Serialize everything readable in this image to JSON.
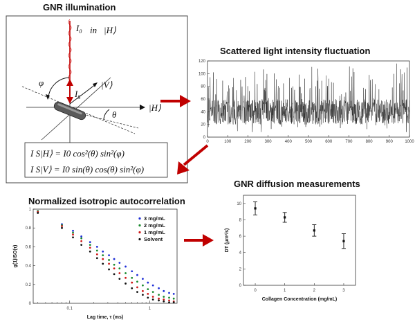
{
  "panels": {
    "illumination": {
      "title": "GNR illumination",
      "labels": {
        "i0": "I",
        "i0_sub": "0",
        "in": "in",
        "h_ket_top": "|H⟩",
        "h_ket_right": "|H⟩",
        "v_ket": "|V⟩",
        "is": "I",
        "is_sub": "S",
        "phi": "φ",
        "theta": "θ"
      },
      "equations": [
        "I S|H⟩ = I0 cos²(θ) sin²(φ)",
        "I S|V⟩ = I0 sin(θ) cos(θ) sin²(φ)"
      ]
    },
    "fluctuation": {
      "title": "Scattered light intensity fluctuation"
    },
    "autocorrelation": {
      "title": "Normalized isotropic autocorrelation"
    },
    "diffusion": {
      "title": "GNR diffusion measurements"
    }
  },
  "colors": {
    "arrow": "#c00000",
    "panel_border": "#444444",
    "rod": "#555555"
  },
  "chart_data": [
    {
      "type": "line",
      "xlim": [
        0,
        1000
      ],
      "ylim": [
        0,
        120
      ],
      "xticks": [
        0,
        100,
        200,
        300,
        400,
        500,
        600,
        700,
        800,
        900,
        1000
      ],
      "yticks": [
        0,
        20,
        40,
        60,
        80,
        100,
        120
      ],
      "xlabel": "",
      "ylabel": "",
      "noise": {
        "baseline": 40,
        "min": 8,
        "max": 118,
        "points": 1000
      },
      "grid": false
    },
    {
      "type": "scatter",
      "x_scale": "log",
      "xlabel": "Lag time, τ (ms)",
      "ylabel": "g(1)ISO(τ)",
      "xlim": [
        0.035,
        2.2
      ],
      "ylim": [
        0,
        1.0
      ],
      "xticks": [
        0.1,
        1
      ],
      "yticks": [
        0,
        0.2,
        0.4,
        0.6,
        0.8,
        1.0
      ],
      "legend_position": "top-right",
      "x": [
        0.04,
        0.08,
        0.11,
        0.14,
        0.18,
        0.22,
        0.26,
        0.31,
        0.36,
        0.42,
        0.5,
        0.6,
        0.7,
        0.82,
        0.95,
        1.1,
        1.3,
        1.5,
        1.75,
        2.0
      ],
      "series": [
        {
          "name": "3 mg/mL",
          "color": "#1f2fd6",
          "values": [
            0.98,
            0.84,
            0.77,
            0.71,
            0.65,
            0.6,
            0.55,
            0.51,
            0.47,
            0.43,
            0.39,
            0.34,
            0.3,
            0.26,
            0.22,
            0.19,
            0.16,
            0.13,
            0.11,
            0.1
          ]
        },
        {
          "name": "2 mg/mL",
          "color": "#1a8a2e",
          "values": [
            0.98,
            0.83,
            0.75,
            0.69,
            0.62,
            0.56,
            0.51,
            0.46,
            0.41,
            0.37,
            0.32,
            0.27,
            0.23,
            0.19,
            0.15,
            0.12,
            0.09,
            0.07,
            0.06,
            0.05
          ]
        },
        {
          "name": "1 mg/mL",
          "color": "#d01818",
          "values": [
            0.97,
            0.82,
            0.73,
            0.66,
            0.59,
            0.52,
            0.47,
            0.42,
            0.37,
            0.32,
            0.27,
            0.22,
            0.17,
            0.13,
            0.1,
            0.07,
            0.05,
            0.04,
            0.03,
            0.02
          ]
        },
        {
          "name": "Solvent",
          "color": "#111111",
          "values": [
            0.96,
            0.8,
            0.7,
            0.62,
            0.55,
            0.48,
            0.42,
            0.36,
            0.31,
            0.26,
            0.21,
            0.16,
            0.12,
            0.09,
            0.06,
            0.04,
            0.03,
            0.02,
            0.01,
            0.01
          ]
        }
      ]
    },
    {
      "type": "scatter",
      "xlabel": "Collagen Concentration (mg/mL)",
      "ylabel": "DT (μm²/s)",
      "xlim": [
        -0.4,
        3.4
      ],
      "ylim": [
        0,
        11
      ],
      "xticks": [
        0,
        1,
        2,
        3
      ],
      "yticks": [
        0,
        2,
        4,
        6,
        8,
        10
      ],
      "x": [
        0,
        1,
        2,
        3
      ],
      "values": [
        9.4,
        8.3,
        6.7,
        5.4
      ],
      "errors": [
        0.8,
        0.6,
        0.7,
        0.9
      ]
    }
  ]
}
